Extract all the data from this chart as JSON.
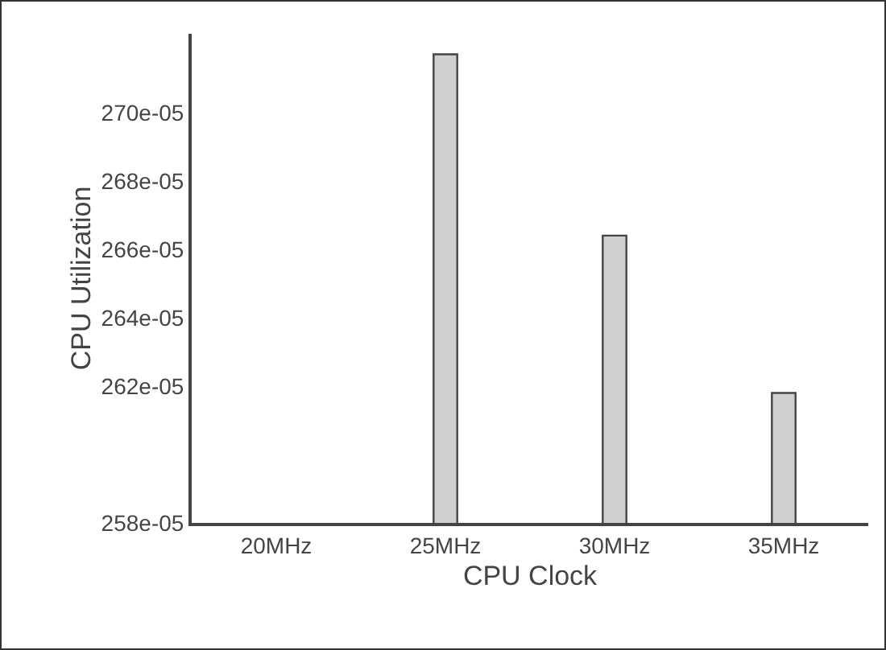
{
  "chart_data": {
    "type": "bar",
    "xlabel": "CPU Clock",
    "ylabel": "CPU Utilization",
    "categories": [
      "20MHz",
      "25MHz",
      "30MHz",
      "35MHz"
    ],
    "values": [
      null,
      0.002717,
      0.002664,
      0.002618
    ],
    "color": "#d0d0d0",
    "ylim": [
      0.00258,
      0.002723
    ],
    "yticks": [
      {
        "value": 0.00258,
        "label": "258e-05"
      },
      {
        "value": 0.00262,
        "label": "262e-05"
      },
      {
        "value": 0.00264,
        "label": "264e-05"
      },
      {
        "value": 0.00266,
        "label": "266e-05"
      },
      {
        "value": 0.00268,
        "label": "268e-05"
      },
      {
        "value": 0.0027,
        "label": "270e-05"
      }
    ],
    "grid": false
  }
}
